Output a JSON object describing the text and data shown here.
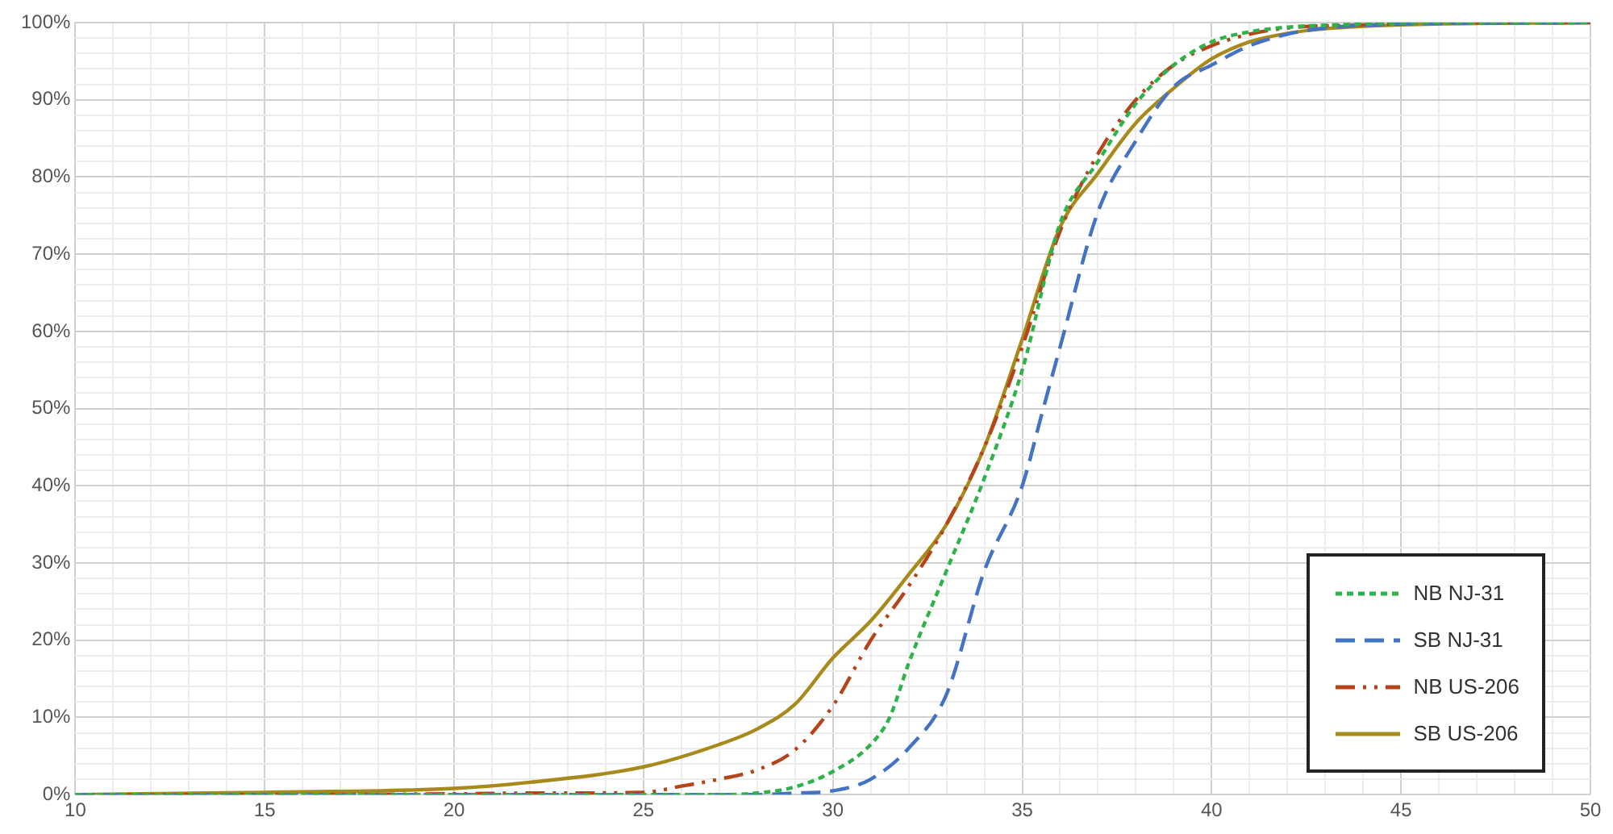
{
  "chart_data": {
    "type": "line",
    "xlim": [
      10,
      50
    ],
    "ylim": [
      0,
      100
    ],
    "xticks": [
      10,
      {
        "value": 11,
        "label": null
      },
      {
        "value": 12,
        "label": null
      },
      {
        "value": 13,
        "label": null
      },
      {
        "value": 14,
        "label": null
      },
      15,
      {
        "value": 16,
        "label": null
      },
      {
        "value": 17,
        "label": null
      },
      {
        "value": 18,
        "label": null
      },
      {
        "value": 19,
        "label": null
      },
      20,
      {
        "value": 21,
        "label": null
      },
      {
        "value": 22,
        "label": null
      },
      {
        "value": 23,
        "label": null
      },
      {
        "value": 24,
        "label": null
      },
      25,
      {
        "value": 26,
        "label": null
      },
      {
        "value": 27,
        "label": null
      },
      {
        "value": 28,
        "label": null
      },
      {
        "value": 29,
        "label": null
      },
      30,
      {
        "value": 31,
        "label": null
      },
      {
        "value": 32,
        "label": null
      },
      {
        "value": 33,
        "label": null
      },
      {
        "value": 34,
        "label": null
      },
      35,
      {
        "value": 36,
        "label": null
      },
      {
        "value": 37,
        "label": null
      },
      {
        "value": 38,
        "label": null
      },
      {
        "value": 39,
        "label": null
      },
      40,
      {
        "value": 41,
        "label": null
      },
      {
        "value": 42,
        "label": null
      },
      {
        "value": 43,
        "label": null
      },
      {
        "value": 44,
        "label": null
      },
      45,
      {
        "value": 46,
        "label": null
      },
      {
        "value": 47,
        "label": null
      },
      {
        "value": 48,
        "label": null
      },
      {
        "value": 49,
        "label": null
      },
      50
    ],
    "yticks": [
      {
        "value": 0,
        "label": "0%"
      },
      {
        "value": 2,
        "label": null
      },
      {
        "value": 4,
        "label": null
      },
      {
        "value": 6,
        "label": null
      },
      {
        "value": 8,
        "label": null
      },
      {
        "value": 10,
        "label": "10%"
      },
      {
        "value": 12,
        "label": null
      },
      {
        "value": 14,
        "label": null
      },
      {
        "value": 16,
        "label": null
      },
      {
        "value": 18,
        "label": null
      },
      {
        "value": 20,
        "label": "20%"
      },
      {
        "value": 22,
        "label": null
      },
      {
        "value": 24,
        "label": null
      },
      {
        "value": 26,
        "label": null
      },
      {
        "value": 28,
        "label": null
      },
      {
        "value": 30,
        "label": "30%"
      },
      {
        "value": 32,
        "label": null
      },
      {
        "value": 34,
        "label": null
      },
      {
        "value": 36,
        "label": null
      },
      {
        "value": 38,
        "label": null
      },
      {
        "value": 40,
        "label": "40%"
      },
      {
        "value": 42,
        "label": null
      },
      {
        "value": 44,
        "label": null
      },
      {
        "value": 46,
        "label": null
      },
      {
        "value": 48,
        "label": null
      },
      {
        "value": 50,
        "label": "50%"
      },
      {
        "value": 52,
        "label": null
      },
      {
        "value": 54,
        "label": null
      },
      {
        "value": 56,
        "label": null
      },
      {
        "value": 58,
        "label": null
      },
      {
        "value": 60,
        "label": "60%"
      },
      {
        "value": 62,
        "label": null
      },
      {
        "value": 64,
        "label": null
      },
      {
        "value": 66,
        "label": null
      },
      {
        "value": 68,
        "label": null
      },
      {
        "value": 70,
        "label": "70%"
      },
      {
        "value": 72,
        "label": null
      },
      {
        "value": 74,
        "label": null
      },
      {
        "value": 76,
        "label": null
      },
      {
        "value": 78,
        "label": null
      },
      {
        "value": 80,
        "label": "80%"
      },
      {
        "value": 82,
        "label": null
      },
      {
        "value": 84,
        "label": null
      },
      {
        "value": 86,
        "label": null
      },
      {
        "value": 88,
        "label": null
      },
      {
        "value": 90,
        "label": "90%"
      },
      {
        "value": 92,
        "label": null
      },
      {
        "value": 94,
        "label": null
      },
      {
        "value": 96,
        "label": null
      },
      {
        "value": 98,
        "label": null
      },
      {
        "value": 100,
        "label": "100%"
      }
    ],
    "grid": true,
    "legend": "bottom right",
    "marker": "none",
    "series": [
      {
        "name": "NB NJ-31",
        "color": "#2db34a",
        "line_style": "dotted",
        "x": [
          10,
          20,
          25,
          27,
          28,
          29,
          30,
          31,
          31.5,
          32,
          33,
          34,
          35,
          36,
          37,
          38,
          39,
          40,
          41,
          42,
          44,
          46,
          50
        ],
        "values": [
          0,
          0,
          0,
          0,
          0.2,
          1,
          3,
          6.5,
          10,
          17,
          29,
          41,
          55,
          74,
          82,
          89.5,
          94.5,
          97.5,
          98.8,
          99.4,
          99.8,
          100,
          100
        ]
      },
      {
        "name": "SB NJ-31",
        "color": "#4472c4",
        "line_style": "dashed",
        "x": [
          10,
          20,
          25,
          28,
          29,
          30,
          31,
          32,
          33,
          34,
          35,
          35.5,
          36,
          37,
          38,
          39,
          40,
          41,
          42,
          43,
          45,
          50
        ],
        "values": [
          0,
          0,
          0,
          0,
          0.2,
          0.5,
          2,
          6,
          13,
          29,
          40,
          49,
          58,
          75.5,
          84.7,
          91.7,
          94.5,
          97,
          98.5,
          99.3,
          99.8,
          100
        ]
      },
      {
        "name": "NB US-206",
        "color": "#b5441a",
        "line_style": "dashdot",
        "x": [
          10,
          15,
          20,
          22,
          25,
          26,
          27,
          28,
          29,
          30,
          31,
          32,
          33,
          34,
          35,
          36,
          37,
          38,
          39,
          40,
          41,
          42,
          44,
          46,
          50
        ],
        "values": [
          0,
          0,
          0.1,
          0.2,
          0.3,
          1.1,
          2,
          3.2,
          5.8,
          11.5,
          20,
          27,
          35,
          45,
          58,
          73,
          83,
          90,
          94.5,
          97,
          98.5,
          99.3,
          99.7,
          100,
          100
        ]
      },
      {
        "name": "SB US-206",
        "color": "#a88a1c",
        "line_style": "solid",
        "x": [
          10,
          15,
          20,
          22,
          25,
          27,
          28,
          29,
          30,
          31,
          32,
          33,
          34,
          35,
          36,
          37,
          38,
          39,
          40,
          41,
          42,
          43,
          45,
          50
        ],
        "values": [
          0,
          0.3,
          0.8,
          1.6,
          3.6,
          6.5,
          8.5,
          11.7,
          17.7,
          22.5,
          28.5,
          35,
          45,
          59,
          73.5,
          80.5,
          87,
          91.5,
          95.3,
          97.5,
          98.6,
          99.2,
          99.7,
          100
        ]
      }
    ]
  }
}
